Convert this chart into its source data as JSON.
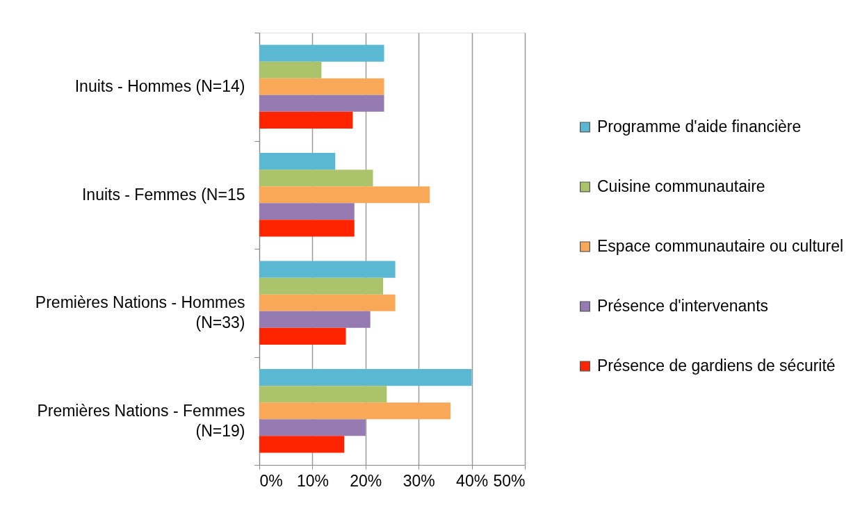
{
  "chart_data": {
    "type": "bar",
    "orientation": "horizontal",
    "categories": [
      "Inuits - Hommes (N=14)",
      "Inuits - Femmes (N=15",
      "Premières Nations - Hommes (N=33)",
      "Premières Nations - Femmes (N=19)"
    ],
    "series": [
      {
        "name": "Programme d'aide financière",
        "color": "#5bb8d2",
        "values": [
          23.5,
          14.3,
          25.6,
          40.0
        ]
      },
      {
        "name": "Cuisine communautaire",
        "color": "#abc46c",
        "values": [
          11.7,
          21.4,
          23.3,
          24.0
        ]
      },
      {
        "name": "Espace communautaire ou culturel",
        "color": "#f9a857",
        "values": [
          23.5,
          32.1,
          25.6,
          36.0
        ]
      },
      {
        "name": "Présence d'intervenants",
        "color": "#957bb1",
        "values": [
          23.5,
          17.9,
          20.9,
          20.0
        ]
      },
      {
        "name": "Présence de gardiens de sécurité",
        "color": "#ff2400",
        "values": [
          17.6,
          17.9,
          16.3,
          16.0
        ]
      }
    ],
    "xlim": [
      0,
      50
    ],
    "xticks": [
      {
        "value": 0,
        "label": "0%"
      },
      {
        "value": 10,
        "label": "10%"
      },
      {
        "value": 20,
        "label": "20%"
      },
      {
        "value": 30,
        "label": "30%"
      },
      {
        "value": 40,
        "label": "40%"
      },
      {
        "value": 50,
        "label": "50%"
      }
    ],
    "grid": "x",
    "legend": "right"
  }
}
